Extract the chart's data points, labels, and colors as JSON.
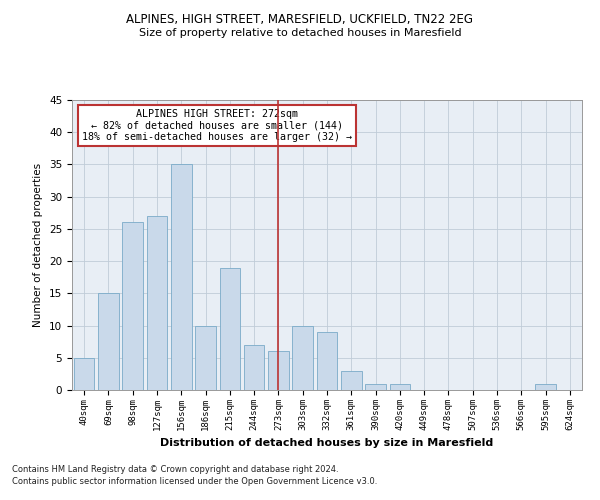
{
  "title1": "ALPINES, HIGH STREET, MARESFIELD, UCKFIELD, TN22 2EG",
  "title2": "Size of property relative to detached houses in Maresfield",
  "xlabel": "Distribution of detached houses by size in Maresfield",
  "ylabel": "Number of detached properties",
  "categories": [
    "40sqm",
    "69sqm",
    "98sqm",
    "127sqm",
    "156sqm",
    "186sqm",
    "215sqm",
    "244sqm",
    "273sqm",
    "303sqm",
    "332sqm",
    "361sqm",
    "390sqm",
    "420sqm",
    "449sqm",
    "478sqm",
    "507sqm",
    "536sqm",
    "566sqm",
    "595sqm",
    "624sqm"
  ],
  "values": [
    5,
    15,
    26,
    27,
    35,
    10,
    19,
    7,
    6,
    10,
    9,
    3,
    1,
    1,
    0,
    0,
    0,
    0,
    0,
    1,
    0
  ],
  "bar_color": "#c9d9ea",
  "bar_edgecolor": "#7aaac8",
  "highlight_index": 8,
  "highlight_color": "#bb3333",
  "annotation_text": "ALPINES HIGH STREET: 272sqm\n← 82% of detached houses are smaller (144)\n18% of semi-detached houses are larger (32) →",
  "annotation_box_edgecolor": "#bb3333",
  "ylim": [
    0,
    45
  ],
  "yticks": [
    0,
    5,
    10,
    15,
    20,
    25,
    30,
    35,
    40,
    45
  ],
  "grid_color": "#c0ccd8",
  "background_color": "#e8eef5",
  "footnote1": "Contains HM Land Registry data © Crown copyright and database right 2024.",
  "footnote2": "Contains public sector information licensed under the Open Government Licence v3.0."
}
